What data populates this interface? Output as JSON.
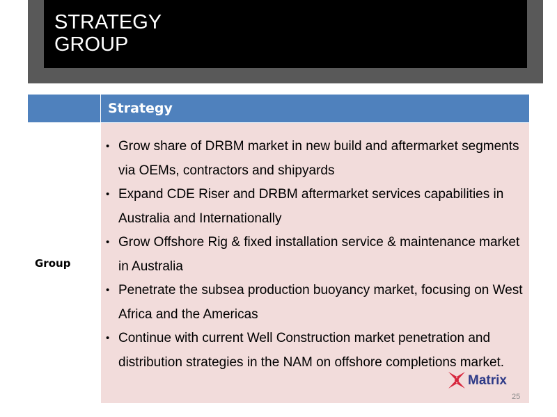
{
  "header": {
    "title_lines": [
      "STRATEGY",
      "GROUP"
    ]
  },
  "table": {
    "column_header": "Strategy",
    "row_label": "Group",
    "bullets": [
      "Grow share of DRBM market in new build and aftermarket segments via OEMs, contractors and shipyards",
      "Expand CDE Riser and DRBM aftermarket services capabilities in Australia and Internationally",
      "Grow Offshore Rig & fixed installation service & maintenance market in Australia",
      "Penetrate the subsea production buoyancy market, focusing on West Africa and the Americas",
      "Continue with current Well Construction market penetration and distribution strategies in the NAM on offshore completions market."
    ]
  },
  "logo": {
    "text": "Matrix"
  },
  "footer": {
    "page_number": "25"
  }
}
